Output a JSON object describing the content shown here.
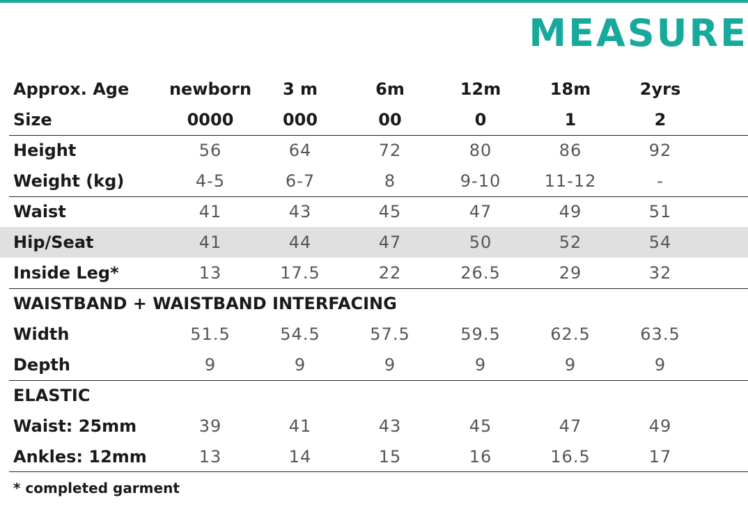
{
  "header": {
    "title": "MEASURE"
  },
  "rows": [
    {
      "label": "Approx. Age",
      "values": [
        "newborn",
        "3 m",
        "6m",
        "12m",
        "18m",
        "2yrs"
      ]
    },
    {
      "label": "Size",
      "values": [
        "0000",
        "000",
        "00",
        "0",
        "1",
        "2"
      ]
    },
    {
      "label": "Height",
      "values": [
        "56",
        "64",
        "72",
        "80",
        "86",
        "92"
      ]
    },
    {
      "label": "Weight (kg)",
      "values": [
        "4-5",
        "6-7",
        "8",
        "9-10",
        "11-12",
        "-"
      ]
    },
    {
      "label": "Waist",
      "values": [
        "41",
        "43",
        "45",
        "47",
        "49",
        "51"
      ]
    },
    {
      "label": "Hip/Seat",
      "values": [
        "41",
        "44",
        "47",
        "50",
        "52",
        "54"
      ]
    },
    {
      "label": "Inside Leg*",
      "values": [
        "13",
        "17.5",
        "22",
        "26.5",
        "29",
        "32"
      ]
    },
    {
      "label": "WAISTBAND + WAISTBAND INTERFACING",
      "values": []
    },
    {
      "label": "Width",
      "values": [
        "51.5",
        "54.5",
        "57.5",
        "59.5",
        "62.5",
        "63.5"
      ]
    },
    {
      "label": "Depth",
      "values": [
        "9",
        "9",
        "9",
        "9",
        "9",
        "9"
      ]
    },
    {
      "label": "ELASTIC",
      "values": []
    },
    {
      "label": "Waist: 25mm",
      "values": [
        "39",
        "41",
        "43",
        "45",
        "47",
        "49"
      ]
    },
    {
      "label": "Ankles: 12mm",
      "values": [
        "13",
        "14",
        "15",
        "16",
        "16.5",
        "17"
      ]
    }
  ],
  "footnote": "* completed garment",
  "colors": {
    "accent": "#17a99c",
    "shade": "#e0e0e0"
  }
}
